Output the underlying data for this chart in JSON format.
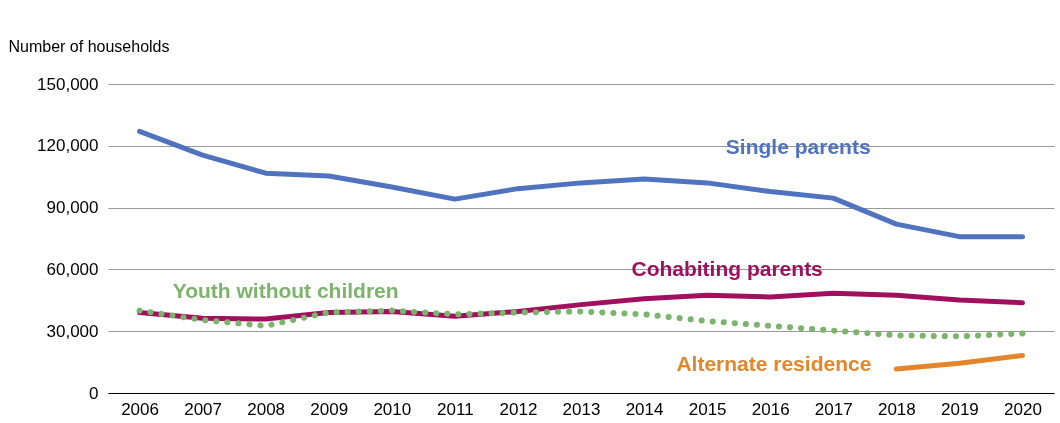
{
  "chart_data": {
    "type": "line",
    "ylabel": "Number of households",
    "categories": [
      "2006",
      "2007",
      "2008",
      "2009",
      "2010",
      "2011",
      "2012",
      "2013",
      "2014",
      "2015",
      "2016",
      "2017",
      "2018",
      "2019",
      "2020"
    ],
    "ylim": [
      0,
      150000
    ],
    "yticks": [
      0,
      {
        "value": 30000,
        "label": "30,000"
      },
      {
        "value": 60000,
        "label": "60,000"
      },
      {
        "value": 90000,
        "label": "90,000"
      },
      {
        "value": 120000,
        "label": "120,000"
      },
      {
        "value": 150000,
        "label": "150,000"
      }
    ],
    "grid": "y",
    "legend": false,
    "series": [
      {
        "name": "Single parents",
        "color": "#4f73be",
        "values": [
          127000,
          115500,
          106700,
          105300,
          100000,
          94100,
          99200,
          102000,
          103900,
          102000,
          97800,
          94600,
          82000,
          75900,
          75900
        ]
      },
      {
        "name": "Cohabiting parents",
        "color": "#a0105f",
        "values": [
          39100,
          36300,
          35900,
          39100,
          39600,
          37300,
          39600,
          42900,
          45700,
          47500,
          46600,
          48400,
          47500,
          45200,
          43800
        ]
      },
      {
        "name": "Youth without children",
        "color": "#7cb46b",
        "line_style": "dotted",
        "values": [
          40000,
          35400,
          32600,
          39100,
          40000,
          38200,
          39100,
          39600,
          38200,
          34900,
          32600,
          30300,
          28000,
          27500,
          28900
        ]
      },
      {
        "name": "Alternate residence",
        "color": "#e3862b",
        "values": [
          null,
          null,
          null,
          null,
          null,
          null,
          null,
          null,
          null,
          null,
          null,
          null,
          11600,
          14400,
          18200
        ]
      }
    ]
  }
}
